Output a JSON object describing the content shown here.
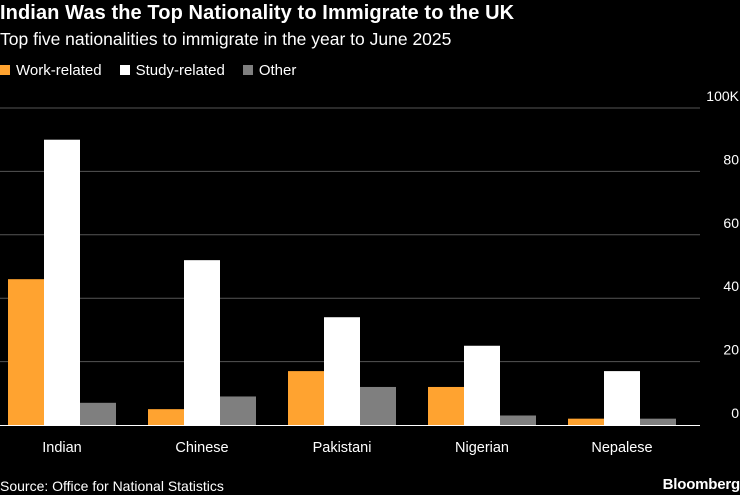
{
  "chart_data": {
    "type": "bar",
    "title": "Indian Was the Top Nationality to Immigrate to the UK",
    "subtitle": "Top five nationalities to immigrate in the year to June 2025",
    "categories": [
      "Indian",
      "Chinese",
      "Pakistani",
      "Nigerian",
      "Nepalese"
    ],
    "series": [
      {
        "name": "Work-related",
        "color": "#ffa330",
        "values": [
          46,
          5,
          17,
          12,
          2
        ]
      },
      {
        "name": "Study-related",
        "color": "#ffffff",
        "values": [
          90,
          52,
          34,
          25,
          17
        ]
      },
      {
        "name": "Other",
        "color": "#7f7f7f",
        "values": [
          7,
          9,
          12,
          3,
          2
        ]
      }
    ],
    "yticks": [
      {
        "value": 0,
        "label": "0"
      },
      {
        "value": 20,
        "label": "20"
      },
      {
        "value": 40,
        "label": "40"
      },
      {
        "value": 60,
        "label": "60"
      },
      {
        "value": 80,
        "label": "80"
      },
      {
        "value": 100,
        "label": "100K"
      }
    ],
    "ylim": [
      0,
      100
    ],
    "xlabel": "",
    "ylabel": "",
    "grid": true,
    "legend_position": "top-left",
    "y_axis_side": "right"
  },
  "source": "Source: Office for National Statistics",
  "brand": "Bloomberg"
}
